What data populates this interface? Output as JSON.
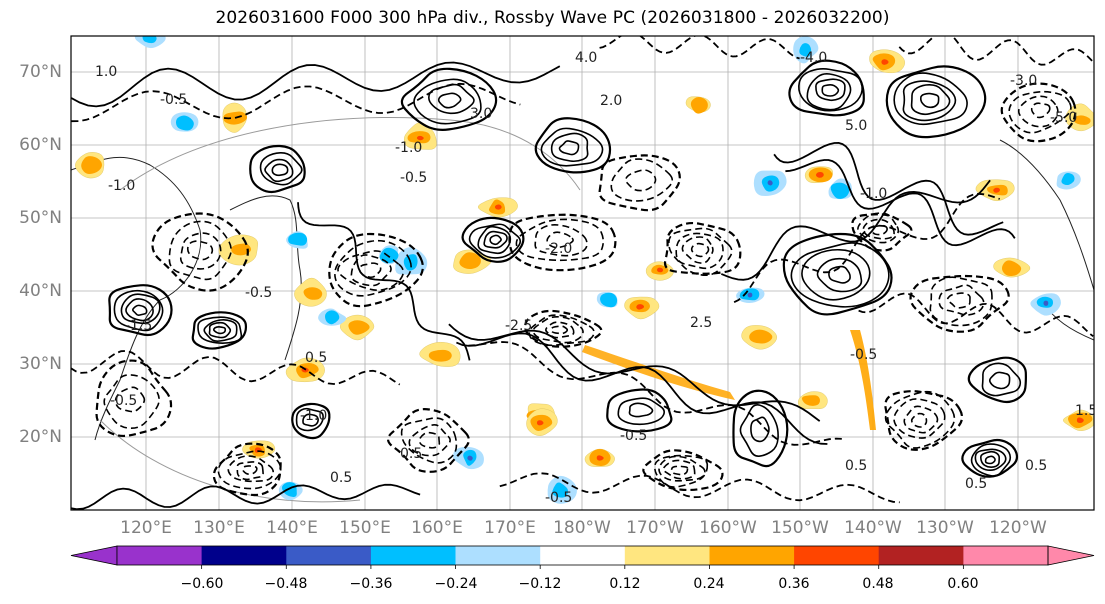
{
  "title": "2026031600 F000 300 hPa div., Rossby Wave PC (2026031800 - 2026032200)",
  "map": {
    "lat_labels": [
      "70°N",
      "60°N",
      "50°N",
      "40°N",
      "30°N",
      "20°N"
    ],
    "lon_labels": [
      "120°E",
      "130°E",
      "140°E",
      "150°E",
      "160°E",
      "170°E",
      "180°W",
      "170°W",
      "160°W",
      "150°W",
      "140°W",
      "130°W",
      "120°W"
    ],
    "contour_labels": [
      "1.0",
      "-0.5",
      "-1.0",
      "0.5",
      "-1.5",
      "-2.0",
      "2.0",
      "3.0",
      "-3.0",
      "-4.0",
      "4.0",
      "-5.0",
      "5.0",
      "-2.5",
      "2.5",
      "1.5"
    ]
  },
  "colorbar": {
    "ticks": [
      "−0.60",
      "−0.48",
      "−0.36",
      "−0.24",
      "−0.12",
      "0.12",
      "0.24",
      "0.36",
      "0.48",
      "0.60"
    ],
    "colors": [
      "#9932CC",
      "#00008B",
      "#3A5BC7",
      "#00BFFF",
      "#ADDFFF",
      "#FFFFFF",
      "#FFE680",
      "#FFA500",
      "#FF4500",
      "#B22222",
      "#FF88AA"
    ]
  }
}
